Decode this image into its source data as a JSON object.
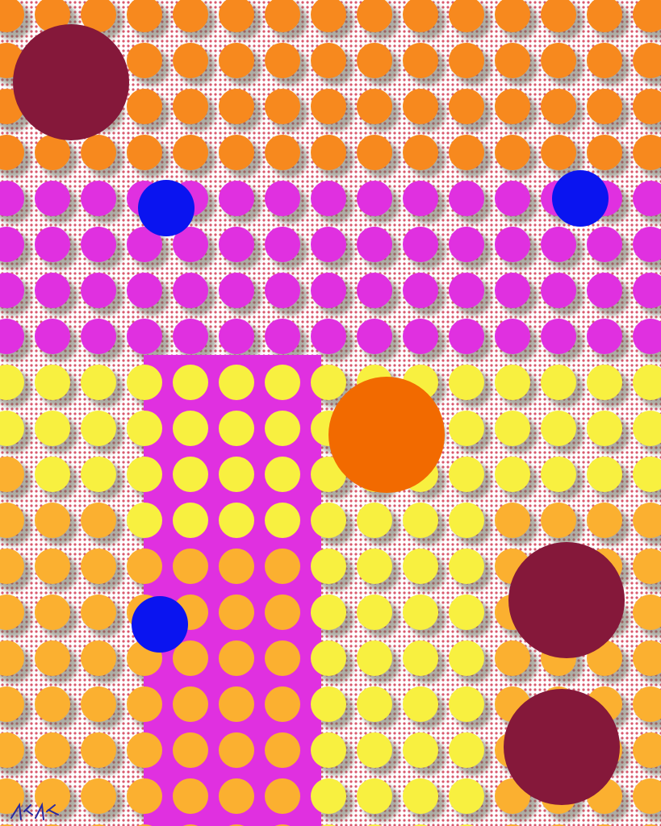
{
  "artwork": {
    "palette": {
      "background": "#ffffff",
      "dot_grid": "#c8102e",
      "orange": "#f7891e",
      "magenta": "#e030e0",
      "yellow": "#f8f040",
      "light_orange": "#fbb030",
      "shadow": "#6a6a5a",
      "maroon": "#85183a",
      "big_orange": "#f26a00",
      "blue": "#0a14f0",
      "signature": "#2a2aa0"
    }
  }
}
